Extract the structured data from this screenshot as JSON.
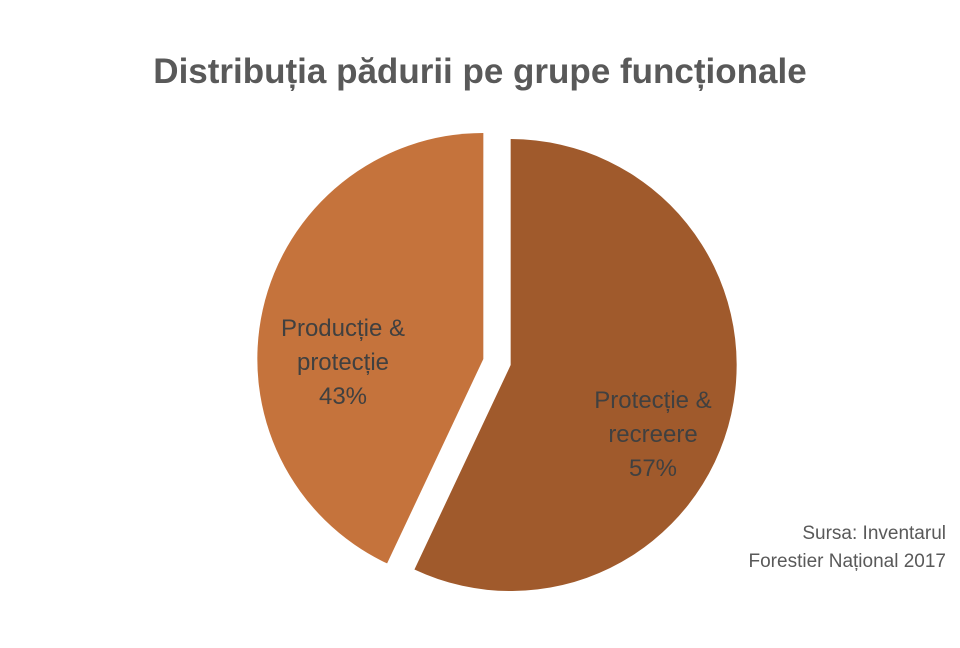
{
  "chart_data": {
    "type": "pie",
    "title": "Distribuția pădurii pe grupe funcționale",
    "slices": [
      {
        "name_lines": [
          "Protecție &",
          "recreere"
        ],
        "value": 57,
        "label": "57%",
        "color": "#A05A2C",
        "exploded": true
      },
      {
        "name_lines": [
          "Producție &",
          "protecție"
        ],
        "value": 43,
        "label": "43%",
        "color": "#C5733C",
        "exploded": true
      }
    ],
    "start_angle_deg": 0,
    "direction": "clockwise",
    "legend": "none"
  },
  "source_note": [
    "Sursa: Inventarul",
    "Forestier Național 2017"
  ]
}
